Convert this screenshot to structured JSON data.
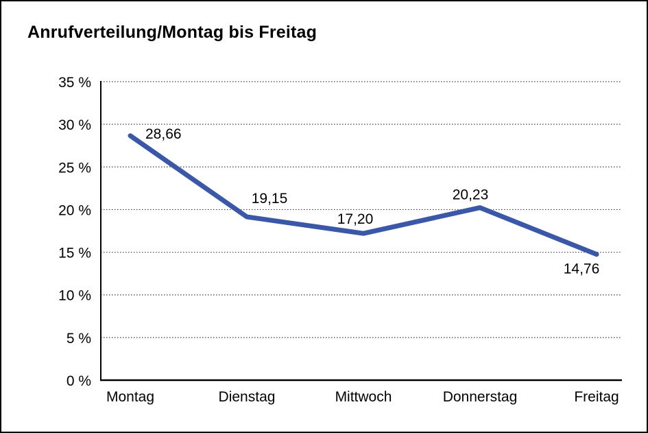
{
  "window": {
    "background": "#FFFFFF",
    "border_color": "#000000"
  },
  "chart_data": {
    "type": "line",
    "title": "Anrufverteilung/Montag bis Freitag",
    "categories": [
      "Montag",
      "Dienstag",
      "Mittwoch",
      "Donnerstag",
      "Freitag"
    ],
    "values": [
      28.66,
      19.15,
      17.2,
      20.23,
      14.76
    ],
    "point_labels": [
      "28,66",
      "19,15",
      "17,20",
      "20,23",
      "14,76"
    ],
    "xlabel": "",
    "ylabel": "",
    "ylim": [
      0,
      35
    ],
    "y_tick_step": 5,
    "y_tick_labels": [
      "0 %",
      "5 %",
      "10 %",
      "15 %",
      "20 %",
      "25 %",
      "30 %",
      "35 %"
    ],
    "grid": "horizontal-dotted",
    "legend_position": "none",
    "line_color": "#3A57A8",
    "grid_color": "#3d3d3d",
    "axis_color": "#000000",
    "text_color": "#000000"
  }
}
